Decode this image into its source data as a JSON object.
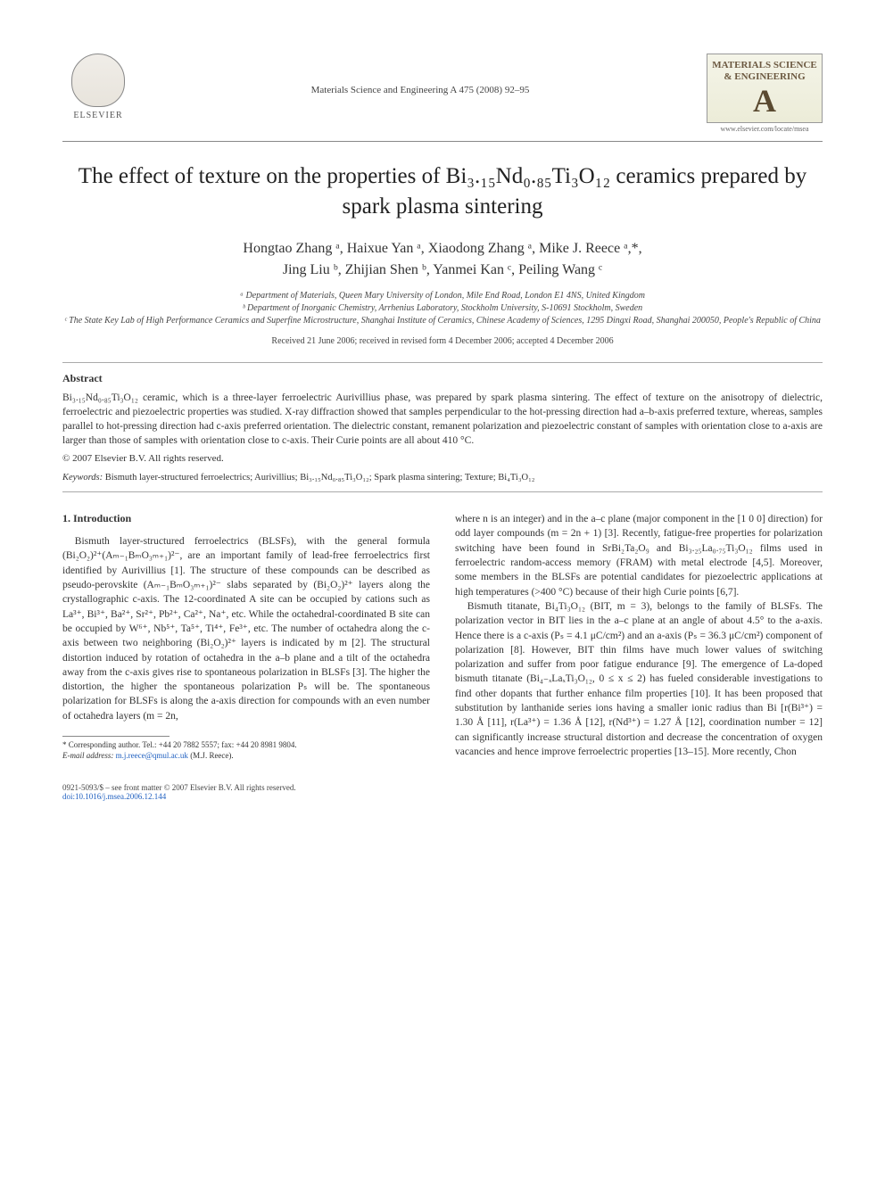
{
  "header": {
    "publisher": "ELSEVIER",
    "journal_ref": "Materials Science and Engineering A 475 (2008) 92–95",
    "journal_logo_lines": "MATERIALS SCIENCE & ENGINEERING",
    "journal_logo_letter": "A",
    "journal_url": "www.elsevier.com/locate/msea"
  },
  "title": "The effect of texture on the properties of Bi₃.₁₅Nd₀.₈₅Ti₃O₁₂ ceramics prepared by spark plasma sintering",
  "authors_line1": "Hongtao Zhang ᵃ, Haixue Yan ᵃ, Xiaodong Zhang ᵃ, Mike J. Reece ᵃ,*,",
  "authors_line2": "Jing Liu ᵇ, Zhijian Shen ᵇ, Yanmei Kan ᶜ, Peiling Wang ᶜ",
  "affiliations": {
    "a": "ᵃ Department of Materials, Queen Mary University of London, Mile End Road, London E1 4NS, United Kingdom",
    "b": "ᵇ Department of Inorganic Chemistry, Arrhenius Laboratory, Stockholm University, S-10691 Stockholm, Sweden",
    "c": "ᶜ The State Key Lab of High Performance Ceramics and Superfine Microstructure, Shanghai Institute of Ceramics, Chinese Academy of Sciences, 1295 Dingxi Road, Shanghai 200050, People's Republic of China"
  },
  "dates": "Received 21 June 2006; received in revised form 4 December 2006; accepted 4 December 2006",
  "abstract": {
    "head": "Abstract",
    "body": "Bi₃.₁₅Nd₀.₈₅Ti₃O₁₂ ceramic, which is a three-layer ferroelectric Aurivillius phase, was prepared by spark plasma sintering. The effect of texture on the anisotropy of dielectric, ferroelectric and piezoelectric properties was studied. X-ray diffraction showed that samples perpendicular to the hot-pressing direction had a–b-axis preferred texture, whereas, samples parallel to hot-pressing direction had c-axis preferred orientation. The dielectric constant, remanent polarization and piezoelectric constant of samples with orientation close to a-axis are larger than those of samples with orientation close to c-axis. Their Curie points are all about 410 °C.",
    "copyright": "© 2007 Elsevier B.V. All rights reserved."
  },
  "keywords": {
    "label": "Keywords:",
    "items": "Bismuth layer-structured ferroelectrics; Aurivillius; Bi₃.₁₅Nd₀.₈₅Ti₃O₁₂; Spark plasma sintering; Texture; Bi₄Ti₃O₁₂"
  },
  "section1_head": "1.  Introduction",
  "col_left": "Bismuth layer-structured ferroelectrics (BLSFs), with the general formula (Bi₂O₂)²⁺(Aₘ₋₁BₘO₃ₘ₊₁)²⁻, are an important family of lead-free ferroelectrics first identified by Aurivillius [1]. The structure of these compounds can be described as pseudo-perovskite (Aₘ₋₁BₘO₃ₘ₊₁)²⁻ slabs separated by (Bi₂O₂)²⁺ layers along the crystallographic c-axis. The 12-coordinated A site can be occupied by cations such as La³⁺, Bi³⁺, Ba²⁺, Sr²⁺, Pb²⁺, Ca²⁺, Na⁺, etc. While the octahedral-coordinated B site can be occupied by W⁶⁺, Nb⁵⁺, Ta⁵⁺, Ti⁴⁺, Fe³⁺, etc. The number of octahedra along the c-axis between two neighboring (Bi₂O₂)²⁺ layers is indicated by m [2]. The structural distortion induced by rotation of octahedra in the a–b plane and a tilt of the octahedra away from the c-axis gives rise to spontaneous polarization in BLSFs [3]. The higher the distortion, the higher the spontaneous polarization Pₛ will be. The spontaneous polarization for BLSFs is along the a-axis direction for compounds with an even number of octahedra layers (m = 2n,",
  "col_right_p1": "where n is an integer) and in the a–c plane (major component in the [1 0 0] direction) for odd layer compounds (m = 2n + 1) [3]. Recently, fatigue-free properties for polarization switching have been found in SrBi₂Ta₂O₉ and Bi₃.₂₅La₀.₇₅Ti₃O₁₂ films used in ferroelectric random-access memory (FRAM) with metal electrode [4,5]. Moreover, some members in the BLSFs are potential candidates for piezoelectric applications at high temperatures (>400 °C) because of their high Curie points [6,7].",
  "col_right_p2": "Bismuth titanate, Bi₄Ti₃O₁₂ (BIT, m = 3), belongs to the family of BLSFs. The polarization vector in BIT lies in the a–c plane at an angle of about 4.5° to the a-axis. Hence there is a c-axis (Pₛ = 4.1 μC/cm²) and an a-axis (Pₛ = 36.3 μC/cm²) component of polarization [8]. However, BIT thin films have much lower values of switching polarization and suffer from poor fatigue endurance [9]. The emergence of La-doped bismuth titanate (Bi₄₋ₓLaₓTi₃O₁₂, 0 ≤ x ≤ 2) has fueled considerable investigations to find other dopants that further enhance film properties [10]. It has been proposed that substitution by lanthanide series ions having a smaller ionic radius than Bi [r(Bi³⁺) = 1.30 Å [11], r(La³⁺) = 1.36 Å [12], r(Nd³⁺) = 1.27 Å [12], coordination number = 12] can significantly increase structural distortion and decrease the concentration of oxygen vacancies and hence improve ferroelectric properties [13–15]. More recently, Chon",
  "footnote": {
    "corr": "* Corresponding author. Tel.: +44 20 7882 5557; fax: +44 20 8981 9804.",
    "email_label": "E-mail address:",
    "email": "m.j.reece@qmul.ac.uk",
    "email_who": "(M.J. Reece)."
  },
  "footer": {
    "line1": "0921-5093/$ – see front matter © 2007 Elsevier B.V. All rights reserved.",
    "doi": "doi:10.1016/j.msea.2006.12.144"
  },
  "colors": {
    "link": "#2060c0",
    "text": "#333333",
    "rule": "#888888"
  }
}
